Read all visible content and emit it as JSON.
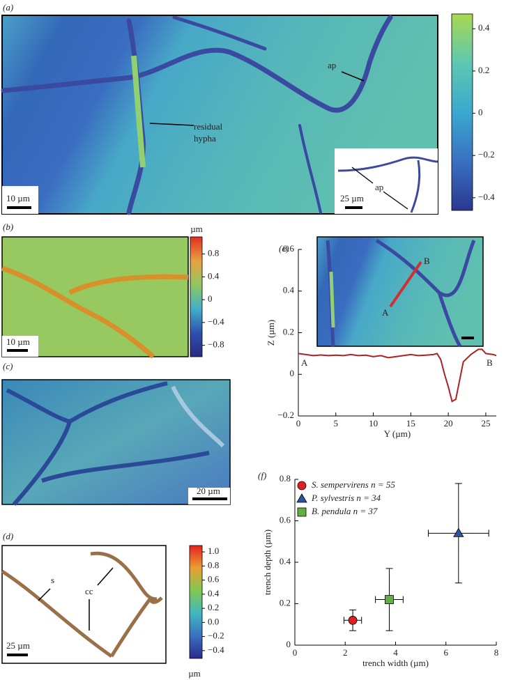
{
  "panels": {
    "a": {
      "label": "(a)",
      "annotations": [
        "ap",
        "residual",
        "hypha"
      ],
      "scale_bar": "10 µm",
      "inset_scale_bar": "25 µm",
      "inset_annotation": "ap"
    },
    "b": {
      "label": "(b)",
      "scale_bar": "10 µm"
    },
    "c": {
      "label": "(c)",
      "scale_bar": "20 µm"
    },
    "d": {
      "label": "(d)",
      "annotations": [
        "s",
        "cc"
      ],
      "scale_bar": "25 µm"
    },
    "e": {
      "label": "(e)",
      "inset_annotations": [
        "A",
        "B"
      ]
    },
    "f": {
      "label": "(f)"
    }
  },
  "chart_data": [
    {
      "type": "colorbar",
      "colors": [
        "#a8d850",
        "#5ec8b0",
        "#3aa8d0",
        "#3a70c0",
        "#2a3890"
      ],
      "ylim": [
        -0.46,
        0.47
      ],
      "yticks": [
        {
          "value": -0.4,
          "label": "−0.4"
        },
        {
          "value": -0.2,
          "label": "−0.2"
        },
        0,
        0.2,
        0.4
      ]
    },
    {
      "type": "colorbar",
      "unit": "µm",
      "colors": [
        "#e03020",
        "#e8a040",
        "#90c860",
        "#40b0c8",
        "#3050b0",
        "#2a2a80"
      ],
      "ylim": [
        -1.0,
        1.1
      ],
      "yticks": [
        {
          "value": -0.8,
          "label": "−0.8"
        },
        {
          "value": -0.4,
          "label": "−0.4"
        },
        0,
        0.4,
        0.8
      ]
    },
    {
      "type": "colorbar",
      "unit": "µm",
      "colors": [
        "#e82020",
        "#e8a030",
        "#80c850",
        "#40b8c0",
        "#3a70c0",
        "#2a2a90"
      ],
      "ylim": [
        -0.51,
        1.09
      ],
      "yticks": [
        {
          "value": -0.4,
          "label": "−0.4"
        },
        {
          "value": -0.2,
          "label": "−0.2"
        },
        {
          "value": 0,
          "label": "0.0"
        },
        0.2,
        0.4,
        0.6,
        0.8,
        {
          "value": 1,
          "label": "1.0"
        }
      ]
    },
    {
      "type": "line",
      "xlabel": "Y (µm)",
      "ylabel": "Z (µm)",
      "annotations": [
        "A",
        "B"
      ],
      "color": "#b02020",
      "x": [
        0,
        1,
        2,
        3,
        4,
        5,
        6,
        7,
        8,
        9,
        10,
        11,
        12,
        13,
        14,
        15,
        16,
        17,
        18,
        18.5,
        19,
        19.5,
        20,
        20.5,
        21,
        21.5,
        22,
        23,
        24,
        24.5,
        25,
        26,
        26.4
      ],
      "values": [
        0.1,
        0.095,
        0.09,
        0.093,
        0.09,
        0.092,
        0.09,
        0.095,
        0.09,
        0.092,
        0.085,
        0.09,
        0.08,
        0.085,
        0.09,
        0.095,
        0.09,
        0.092,
        0.095,
        0.1,
        0.07,
        0.0,
        -0.06,
        -0.13,
        -0.12,
        -0.03,
        0.06,
        0.095,
        0.12,
        0.12,
        0.1,
        0.095,
        0.09
      ],
      "xlim": [
        0,
        26.4
      ],
      "xticks": [
        0,
        5,
        10,
        15,
        20,
        25
      ],
      "ylim": [
        -0.2,
        0.6
      ],
      "yticks": [
        {
          "value": -0.2,
          "label": "−0.2"
        },
        0,
        0.2,
        0.4,
        0.6
      ]
    },
    {
      "type": "scatter",
      "xlabel": "trench width (µm)",
      "ylabel": "trench depth (µm)",
      "series": [
        {
          "name": "S. sempervirens n = 55",
          "color": "#e02020",
          "marker": "circle",
          "x": [
            2.3
          ],
          "values": [
            0.12
          ],
          "xerr": [
            0.35
          ],
          "yerr": [
            0.05
          ]
        },
        {
          "name": "P. sylvestris n = 34",
          "color": "#3050a0",
          "marker": "triangle",
          "x": [
            6.5
          ],
          "values": [
            0.54
          ],
          "xerr": [
            1.2
          ],
          "yerr": [
            0.24
          ]
        },
        {
          "name": "B. pendula n = 37",
          "color": "#60b040",
          "marker": "square",
          "x": [
            3.75
          ],
          "values": [
            0.22
          ],
          "xerr": [
            0.55
          ],
          "yerr": [
            0.15
          ]
        }
      ],
      "xlim": [
        0,
        8
      ],
      "xticks": [
        0,
        2,
        4,
        6,
        8
      ],
      "ylim": [
        0,
        0.8
      ],
      "yticks": [
        0,
        0.2,
        0.4,
        0.6,
        0.8
      ]
    }
  ]
}
